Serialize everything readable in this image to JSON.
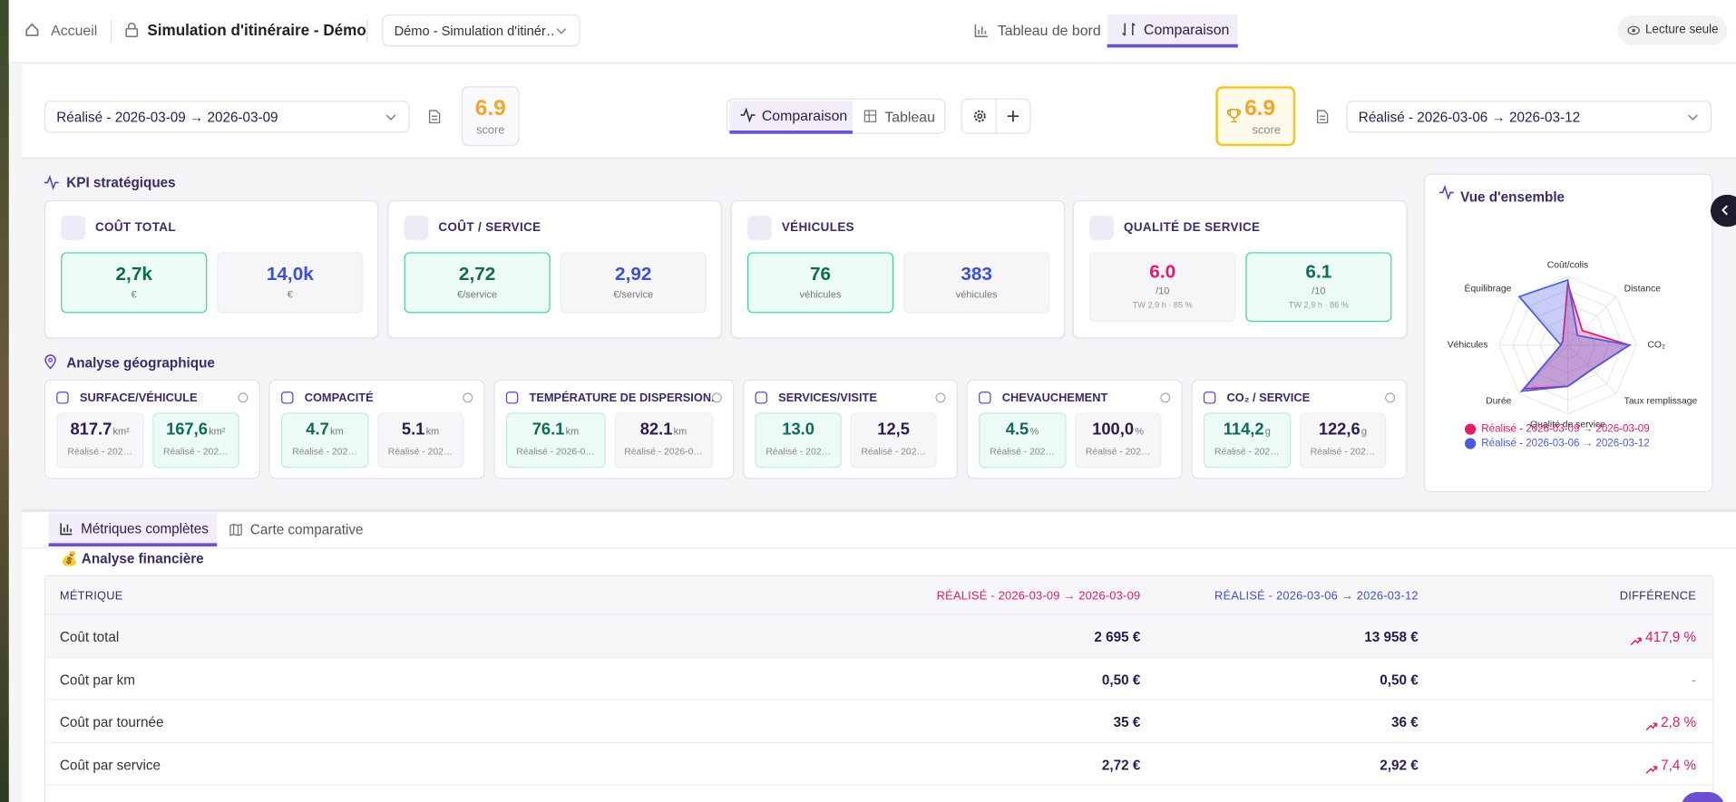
{
  "nav": {
    "home": "Accueil",
    "title": "Simulation d'itinéraire - Démo",
    "select": "Démo - Simulation d'itinér…",
    "tabs": [
      "Tableau de bord",
      "Comparaison"
    ],
    "readonly": "Lecture seule"
  },
  "compare_bar": {
    "left_select": "Réalisé - 2026-03-09 → 2026-03-09",
    "left_score": "6.9",
    "score_label": "score",
    "view_tabs": [
      "Comparaison",
      "Tableau"
    ],
    "right_score": "6.9",
    "right_select": "Réalisé - 2026-03-06 → 2026-03-12"
  },
  "kpi": {
    "title": "KPI stratégiques",
    "cards": [
      {
        "label": "COÛT TOTAL",
        "left": {
          "value": "2,7k",
          "unit": "€"
        },
        "right": {
          "value": "14,0k",
          "unit": "€"
        },
        "highlight": "left"
      },
      {
        "label": "COÛT / SERVICE",
        "left": {
          "value": "2,72",
          "unit": "€/service"
        },
        "right": {
          "value": "2,92",
          "unit": "€/service"
        },
        "highlight": "left"
      },
      {
        "label": "VÉHICULES",
        "left": {
          "value": "76",
          "unit": "véhicules"
        },
        "right": {
          "value": "383",
          "unit": "véhicules"
        },
        "highlight": "left"
      },
      {
        "label": "QUALITÉ DE SERVICE",
        "left": {
          "value": "6.0",
          "unit": "/10",
          "note": "TW 2,9 h · 85 %"
        },
        "right": {
          "value": "6.1",
          "unit": "/10",
          "note": "TW 2,9 h · 86 %"
        },
        "highlight": "right"
      }
    ]
  },
  "geo": {
    "title": "Analyse géographique",
    "cards": [
      {
        "label": "SURFACE/VÉHICULE",
        "left": {
          "value": "817.7",
          "unit": "km²",
          "sub": "Réalisé - 202…"
        },
        "right": {
          "value": "167,6",
          "unit": "km²",
          "sub": "Réalisé - 202…"
        },
        "highlight": "right"
      },
      {
        "label": "COMPACITÉ",
        "left": {
          "value": "4.7",
          "unit": "km",
          "sub": "Réalisé - 202…"
        },
        "right": {
          "value": "5.1",
          "unit": "km",
          "sub": "Réalisé - 202…"
        },
        "highlight": "left"
      },
      {
        "label": "TEMPÉRATURE DE DISPERSION.",
        "left": {
          "value": "76.1",
          "unit": "km",
          "sub": "Réalisé - 2026-0…"
        },
        "right": {
          "value": "82.1",
          "unit": "km",
          "sub": "Réalisé - 2026-0…"
        },
        "highlight": "left"
      },
      {
        "label": "SERVICES/VISITE",
        "left": {
          "value": "13.0",
          "sub": "Réalisé - 202…"
        },
        "right": {
          "value": "12,5",
          "sub": "Réalisé - 202…"
        },
        "highlight": "left"
      },
      {
        "label": "CHEVAUCHEMENT",
        "left": {
          "value": "4.5",
          "unit": "%",
          "sub": "Réalisé - 202…"
        },
        "right": {
          "value": "100,0",
          "unit": "%",
          "sub": "Réalisé - 202…"
        },
        "highlight": "left"
      },
      {
        "label": "CO₂ / SERVICE",
        "left": {
          "value": "114,2",
          "unit": "g",
          "sub": "Réalisé - 202…"
        },
        "right": {
          "value": "122,6",
          "unit": "g",
          "sub": "Réalisé - 202…"
        },
        "highlight": "left"
      }
    ]
  },
  "chart_data": {
    "type": "radar",
    "title": "Vue d'ensemble",
    "categories": [
      "Coût/colis",
      "Distance",
      "CO₂",
      "Taux remplissage",
      "Qualité de service",
      "Durée",
      "Véhicules",
      "Équilibrage"
    ],
    "rlim": [
      0,
      10
    ],
    "series": [
      {
        "name": "Réalisé - 2026-03-09 → 2026-03-09",
        "color": "#e6196b",
        "values": [
          9,
          3,
          9,
          5,
          6,
          9,
          1,
          1
        ]
      },
      {
        "name": "Réalisé - 2026-03-06 → 2026-03-12",
        "color": "#4a5be0",
        "values": [
          9.5,
          2,
          9,
          5,
          6,
          9.5,
          1,
          10
        ]
      }
    ]
  },
  "lower_tabs": [
    "Métriques complètes",
    "Carte comparative"
  ],
  "table": {
    "section": "💰 Analyse financière",
    "columns": [
      "MÉTRIQUE",
      "RÉALISÉ - 2026-03-09 → 2026-03-09",
      "RÉALISÉ - 2026-03-06 → 2026-03-12",
      "DIFFÉRENCE"
    ],
    "rows": [
      [
        "Coût total",
        "2 695 €",
        "13 958 €",
        "417,9 %"
      ],
      [
        "Coût par km",
        "0,50 €",
        "0,50 €",
        "-"
      ],
      [
        "Coût par tournée",
        "35 €",
        "36 €",
        "2,8 %"
      ],
      [
        "Coût par service",
        "2,72 €",
        "2,92 €",
        "7,4 %"
      ]
    ]
  }
}
